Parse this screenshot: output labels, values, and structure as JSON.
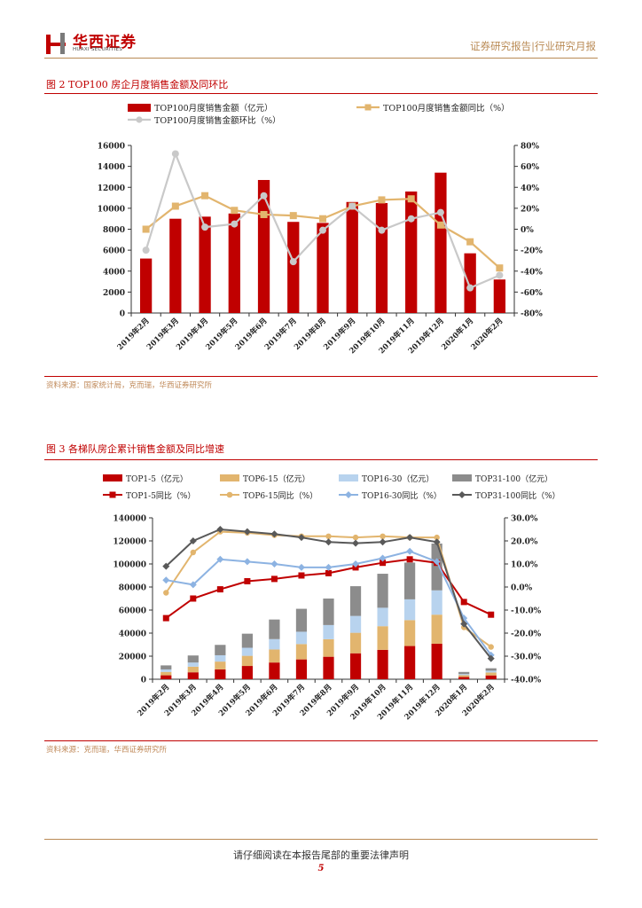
{
  "header": {
    "logo_cn": "华西证券",
    "logo_en": "HUAXI SECURITIES",
    "right_text": "证券研究报告|行业研究月报"
  },
  "fig2": {
    "title": "图 2   TOP100 房企月度销售金额及同环比",
    "source": "资料来源：国家统计局，克而瑞，华西证券研究所"
  },
  "fig3": {
    "title": "图 3   各梯队房企累计销售金额及同比增速",
    "source": "资料来源：克而瑞，华西证券研究所"
  },
  "footer": {
    "disclaimer": "请仔细阅读在本报告尾部的重要法律声明",
    "page": "5"
  },
  "colors": {
    "red": "#c00000",
    "tan": "#e2b56e",
    "lightblue": "#b8d3ee",
    "gray": "#8c8c8c",
    "lightgray": "#c9c9c9",
    "darkgray": "#595959",
    "blue": "#8db3e2"
  },
  "chart_data": [
    {
      "type": "bar",
      "categories": [
        "2019年2月",
        "2019年3月",
        "2019年4月",
        "2019年5月",
        "2019年6月",
        "2019年7月",
        "2019年8月",
        "2019年9月",
        "2019年10月",
        "2019年11月",
        "2019年12月",
        "2020年1月",
        "2020年2月"
      ],
      "series": [
        {
          "name": "TOP100月度销售金额（亿元）",
          "type": "bar",
          "axis": "left",
          "values": [
            5200,
            9000,
            9200,
            9500,
            12700,
            8700,
            8600,
            10600,
            10500,
            11600,
            13400,
            5700,
            3200
          ]
        },
        {
          "name": "TOP100月度销售金额同比（%）",
          "type": "line",
          "axis": "right",
          "values": [
            0,
            22,
            32,
            18,
            14,
            13,
            10,
            22,
            28,
            29,
            4,
            -12,
            -37
          ]
        },
        {
          "name": "TOP100月度销售金额环比（%）",
          "type": "line",
          "axis": "right",
          "values": [
            -20,
            72,
            2,
            5,
            32,
            -31,
            -1,
            22,
            -1,
            10,
            16,
            -56,
            -44
          ]
        }
      ],
      "ylim_left": [
        0,
        16000
      ],
      "ylim_right": [
        -80,
        80
      ],
      "yticks_left": [
        "0",
        "2000",
        "4000",
        "6000",
        "8000",
        "10000",
        "12000",
        "14000",
        "16000"
      ],
      "yticks_right": [
        "-80%",
        "-60%",
        "-40%",
        "-20%",
        "0%",
        "20%",
        "40%",
        "60%",
        "80%"
      ]
    },
    {
      "type": "bar",
      "stacked": true,
      "categories": [
        "2019年2月",
        "2019年3月",
        "2019年4月",
        "2019年5月",
        "2019年6月",
        "2019年7月",
        "2019年8月",
        "2019年9月",
        "2019年10月",
        "2019年11月",
        "2019年12月",
        "2020年1月",
        "2020年2月"
      ],
      "series": [
        {
          "name": "TOP1-5（亿元）",
          "type": "bar",
          "axis": "left",
          "values": [
            3400,
            6000,
            8500,
            11500,
            14500,
            17200,
            19500,
            22500,
            25500,
            28800,
            30800,
            1900,
            3300
          ]
        },
        {
          "name": "TOP6-15（亿元）",
          "type": "bar",
          "axis": "left",
          "values": [
            2900,
            4900,
            6800,
            8800,
            11300,
            13300,
            15200,
            17800,
            20500,
            22500,
            25200,
            1600,
            2500
          ]
        },
        {
          "name": "TOP16-30（亿元）",
          "type": "bar",
          "axis": "left",
          "values": [
            2200,
            3600,
            5500,
            7000,
            9000,
            10700,
            12300,
            14600,
            16000,
            18000,
            21100,
            1000,
            1600
          ]
        },
        {
          "name": "TOP31-100（亿元）",
          "type": "bar",
          "axis": "left",
          "values": [
            3500,
            6100,
            9000,
            12200,
            17000,
            19900,
            23000,
            25800,
            29500,
            31900,
            40600,
            1800,
            2100
          ]
        },
        {
          "name": "TOP1-5同比（%）",
          "type": "line",
          "axis": "right",
          "values": [
            -13.5,
            -5,
            -1,
            2.5,
            3.5,
            5,
            6,
            8.5,
            10.5,
            12,
            10.5,
            -6.5,
            -12
          ]
        },
        {
          "name": "TOP6-15同比（%）",
          "type": "line",
          "axis": "right",
          "values": [
            -2.5,
            15,
            24,
            23.5,
            22.5,
            22,
            22,
            21.5,
            22,
            21.5,
            21.5,
            -17.5,
            -26
          ]
        },
        {
          "name": "TOP16-30同比（%）",
          "type": "line",
          "axis": "right",
          "values": [
            3,
            1,
            12,
            11,
            10,
            8.5,
            8.5,
            10,
            12.5,
            15.5,
            11,
            -13.5,
            -29.5
          ]
        },
        {
          "name": "TOP31-100同比（%）",
          "type": "line",
          "axis": "right",
          "values": [
            9,
            20,
            25,
            24,
            23,
            21.5,
            19.5,
            19,
            19.5,
            21.5,
            19.5,
            -16,
            -31
          ]
        }
      ],
      "ylim_left": [
        0,
        140000
      ],
      "ylim_right": [
        -40,
        30
      ],
      "yticks_left": [
        "0",
        "20000",
        "40000",
        "60000",
        "80000",
        "100000",
        "120000",
        "140000"
      ],
      "yticks_right": [
        "-40.0%",
        "-30.0%",
        "-20.0%",
        "-10.0%",
        "0.0%",
        "10.0%",
        "20.0%",
        "30.0%"
      ]
    }
  ]
}
